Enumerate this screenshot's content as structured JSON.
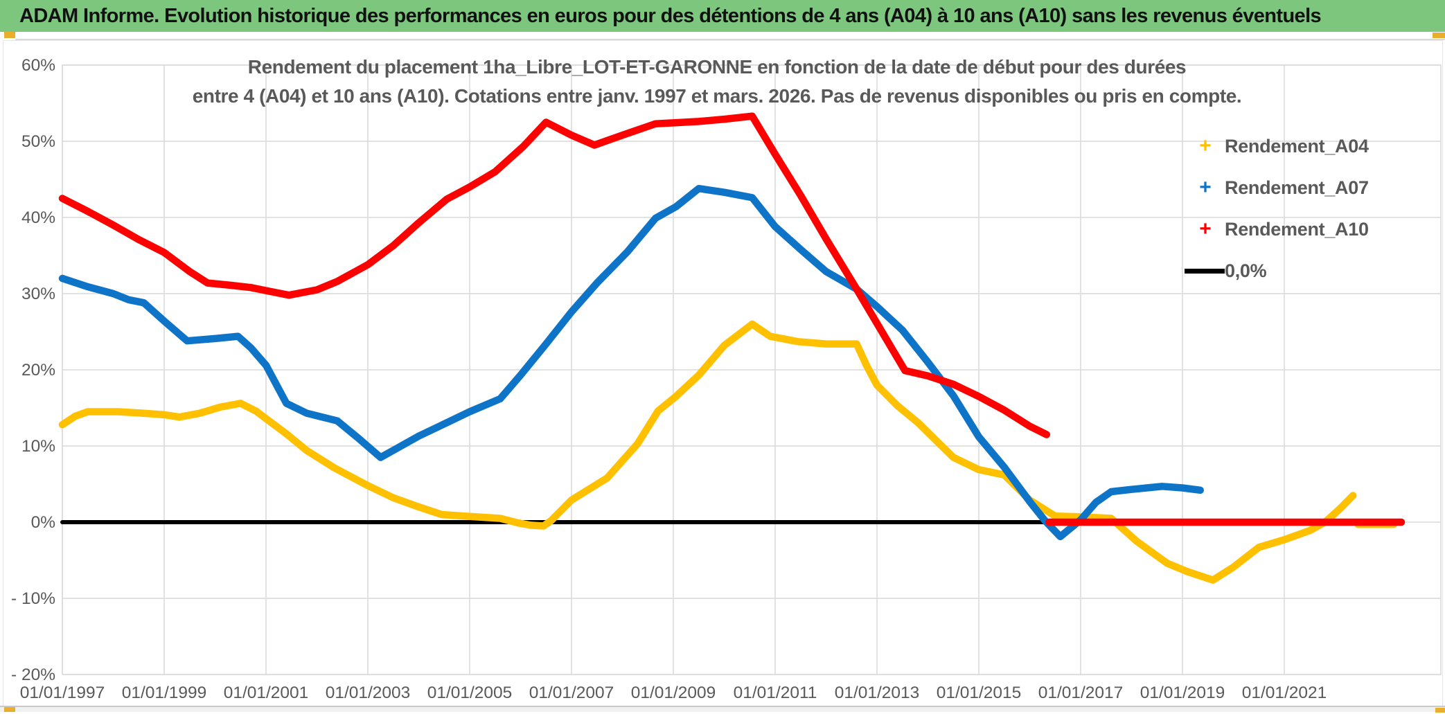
{
  "header": {
    "title": "ADAM Informe. Evolution historique des performances en euros pour des détentions de 4 ans (A04) à 10 ans (A10) sans les revenus éventuels"
  },
  "chart_data": {
    "type": "line",
    "title_line1": "Rendement du placement 1ha_Libre_LOT-ET-GARONNE en fonction de la date de début pour des durées",
    "title_line2": "entre 4 (A04) et 10 ans (A10). Cotations entre janv. 1997 et mars. 2026. Pas de revenus disponibles ou pris en compte.",
    "legend_position": "right",
    "grid": true,
    "x_axis": {
      "min": 1997,
      "max": 2024.07,
      "ticks": [
        {
          "year": 1997,
          "label": "01/01/1997"
        },
        {
          "year": 1999,
          "label": "01/01/1999"
        },
        {
          "year": 2001,
          "label": "01/01/2001"
        },
        {
          "year": 2003,
          "label": "01/01/2003"
        },
        {
          "year": 2005,
          "label": "01/01/2005"
        },
        {
          "year": 2007,
          "label": "01/01/2007"
        },
        {
          "year": 2009,
          "label": "01/01/2009"
        },
        {
          "year": 2011,
          "label": "01/01/2011"
        },
        {
          "year": 2013,
          "label": "01/01/2013"
        },
        {
          "year": 2015,
          "label": "01/01/2015"
        },
        {
          "year": 2017,
          "label": "01/01/2017"
        },
        {
          "year": 2019,
          "label": "01/01/2019"
        },
        {
          "year": 2021,
          "label": "01/01/2021"
        }
      ]
    },
    "y_axis": {
      "min": -20,
      "max": 60,
      "unit": "%",
      "ticks": [
        {
          "v": 60,
          "label": "60%"
        },
        {
          "v": 50,
          "label": "50%"
        },
        {
          "v": 40,
          "label": "40%"
        },
        {
          "v": 30,
          "label": "30%"
        },
        {
          "v": 20,
          "label": "20%"
        },
        {
          "v": 10,
          "label": "10%"
        },
        {
          "v": 0,
          "label": "0%"
        },
        {
          "v": -10,
          "label": "- 10%"
        },
        {
          "v": -20,
          "label": "- 20%"
        }
      ]
    },
    "series": [
      {
        "name": "Rendement_A04",
        "color": "#FFC000",
        "marker": "+",
        "segments": [
          [
            [
              1997,
              12.8
            ],
            [
              1997.25,
              13.9
            ],
            [
              1997.5,
              14.5
            ],
            [
              1998.1,
              14.5
            ],
            [
              1998.6,
              14.3
            ],
            [
              1999,
              14.1
            ],
            [
              1999.3,
              13.8
            ],
            [
              1999.7,
              14.3
            ],
            [
              2000.1,
              15.1
            ],
            [
              2000.5,
              15.6
            ],
            [
              2000.8,
              14.6
            ],
            [
              2001,
              13.6
            ],
            [
              2001.4,
              11.6
            ],
            [
              2001.8,
              9.4
            ],
            [
              2002.35,
              7.1
            ],
            [
              2003,
              4.8
            ],
            [
              2003.5,
              3.2
            ],
            [
              2004,
              2.0
            ],
            [
              2004.45,
              1.0
            ],
            [
              2004.9,
              0.8
            ],
            [
              2005.6,
              0.5
            ],
            [
              2005.95,
              -0.1
            ],
            [
              2006.2,
              -0.4
            ],
            [
              2006.45,
              -0.5
            ],
            [
              2006.6,
              0.2
            ],
            [
              2007,
              2.9
            ],
            [
              2007.7,
              5.8
            ],
            [
              2008.3,
              10.3
            ],
            [
              2008.7,
              14.6
            ],
            [
              2009.05,
              16.5
            ],
            [
              2009.5,
              19.3
            ],
            [
              2010,
              23.2
            ],
            [
              2010.55,
              26.0
            ],
            [
              2010.9,
              24.4
            ],
            [
              2011.45,
              23.7
            ],
            [
              2012,
              23.4
            ],
            [
              2012.6,
              23.4
            ],
            [
              2012.8,
              20.5
            ],
            [
              2013,
              18.0
            ],
            [
              2013.4,
              15.3
            ],
            [
              2013.8,
              13.1
            ],
            [
              2014.5,
              8.5
            ],
            [
              2015,
              6.9
            ],
            [
              2015.5,
              6.2
            ],
            [
              2016,
              2.9
            ],
            [
              2016.5,
              0.8
            ],
            [
              2017,
              0.7
            ],
            [
              2017.6,
              0.5
            ],
            [
              2018.1,
              -2.5
            ],
            [
              2018.7,
              -5.4
            ],
            [
              2019.1,
              -6.5
            ],
            [
              2019.6,
              -7.6
            ],
            [
              2020,
              -5.9
            ],
            [
              2020.5,
              -3.3
            ],
            [
              2021,
              -2.3
            ],
            [
              2021.5,
              -1.1
            ],
            [
              2021.8,
              0.0
            ],
            [
              2022.1,
              1.8
            ],
            [
              2022.35,
              3.5
            ]
          ],
          [
            [
              2022.45,
              -0.3
            ],
            [
              2023.15,
              -0.3
            ]
          ]
        ]
      },
      {
        "name": "Rendement_A07",
        "color": "#0E74C8",
        "marker": "+",
        "segments": [
          [
            [
              1997,
              32.0
            ],
            [
              1997.5,
              30.9
            ],
            [
              1998,
              30.0
            ],
            [
              1998.3,
              29.2
            ],
            [
              1998.6,
              28.8
            ],
            [
              1999,
              26.4
            ],
            [
              1999.45,
              23.8
            ],
            [
              2000,
              24.1
            ],
            [
              2000.45,
              24.4
            ],
            [
              2000.7,
              22.9
            ],
            [
              2001,
              20.6
            ],
            [
              2001.4,
              15.6
            ],
            [
              2001.8,
              14.3
            ],
            [
              2002.4,
              13.3
            ],
            [
              2002.8,
              11.1
            ],
            [
              2003.25,
              8.5
            ],
            [
              2003.6,
              9.8
            ],
            [
              2004,
              11.3
            ],
            [
              2004.5,
              12.9
            ],
            [
              2005,
              14.5
            ],
            [
              2005.6,
              16.2
            ],
            [
              2006,
              19.3
            ],
            [
              2006.5,
              23.4
            ],
            [
              2007,
              27.6
            ],
            [
              2007.5,
              31.4
            ],
            [
              2008.1,
              35.5
            ],
            [
              2008.65,
              39.9
            ],
            [
              2009.05,
              41.4
            ],
            [
              2009.5,
              43.8
            ],
            [
              2010,
              43.3
            ],
            [
              2010.55,
              42.6
            ],
            [
              2011,
              38.8
            ],
            [
              2011.5,
              35.8
            ],
            [
              2012,
              32.9
            ],
            [
              2012.6,
              30.6
            ],
            [
              2013,
              28.3
            ],
            [
              2013.5,
              25.2
            ],
            [
              2014,
              21.0
            ],
            [
              2014.5,
              16.6
            ],
            [
              2015,
              11.2
            ],
            [
              2015.5,
              7.2
            ],
            [
              2016,
              2.7
            ],
            [
              2016.3,
              0.2
            ],
            [
              2016.6,
              -1.9
            ],
            [
              2017,
              0.3
            ],
            [
              2017.3,
              2.6
            ],
            [
              2017.6,
              4.0
            ],
            [
              2018,
              4.3
            ],
            [
              2018.6,
              4.7
            ],
            [
              2019,
              4.5
            ],
            [
              2019.35,
              4.2
            ]
          ]
        ]
      },
      {
        "name": "Rendement_A10",
        "color": "#FF0000",
        "marker": "+",
        "segments": [
          [
            [
              1997,
              42.5
            ],
            [
              1997.5,
              40.8
            ],
            [
              1998,
              39.0
            ],
            [
              1998.5,
              37.1
            ],
            [
              1999,
              35.4
            ],
            [
              1999.5,
              32.9
            ],
            [
              1999.85,
              31.4
            ],
            [
              2000.3,
              31.1
            ],
            [
              2000.7,
              30.8
            ],
            [
              2001,
              30.4
            ],
            [
              2001.45,
              29.8
            ],
            [
              2002,
              30.5
            ],
            [
              2002.4,
              31.6
            ],
            [
              2003,
              33.8
            ],
            [
              2003.5,
              36.3
            ],
            [
              2004,
              39.3
            ],
            [
              2004.55,
              42.4
            ],
            [
              2005,
              44.0
            ],
            [
              2005.5,
              46.0
            ],
            [
              2006.05,
              49.3
            ],
            [
              2006.5,
              52.5
            ],
            [
              2007,
              50.8
            ],
            [
              2007.45,
              49.5
            ],
            [
              2008,
              50.8
            ],
            [
              2008.65,
              52.3
            ],
            [
              2009.5,
              52.6
            ],
            [
              2010,
              52.9
            ],
            [
              2010.55,
              53.3
            ],
            [
              2011,
              48.3
            ],
            [
              2011.5,
              42.9
            ],
            [
              2012,
              37.2
            ],
            [
              2012.6,
              30.6
            ],
            [
              2013,
              26.1
            ],
            [
              2013.55,
              19.9
            ],
            [
              2014,
              19.2
            ],
            [
              2014.5,
              18.1
            ],
            [
              2015,
              16.5
            ],
            [
              2015.5,
              14.7
            ],
            [
              2016,
              12.6
            ],
            [
              2016.33,
              11.5
            ]
          ],
          [
            [
              2016.38,
              0.0
            ],
            [
              2023.3,
              0.0
            ]
          ]
        ]
      },
      {
        "name": "0,0%",
        "color": "#000000",
        "marker": "line",
        "segments": [
          [
            [
              1997,
              0.0
            ],
            [
              2023.3,
              0.0
            ]
          ]
        ]
      }
    ]
  },
  "decor": {
    "header_bg": "#7cc67e",
    "accent_gold": "#eaae2f",
    "grid_color": "#d9d9d9",
    "text_gray": "#595959"
  }
}
